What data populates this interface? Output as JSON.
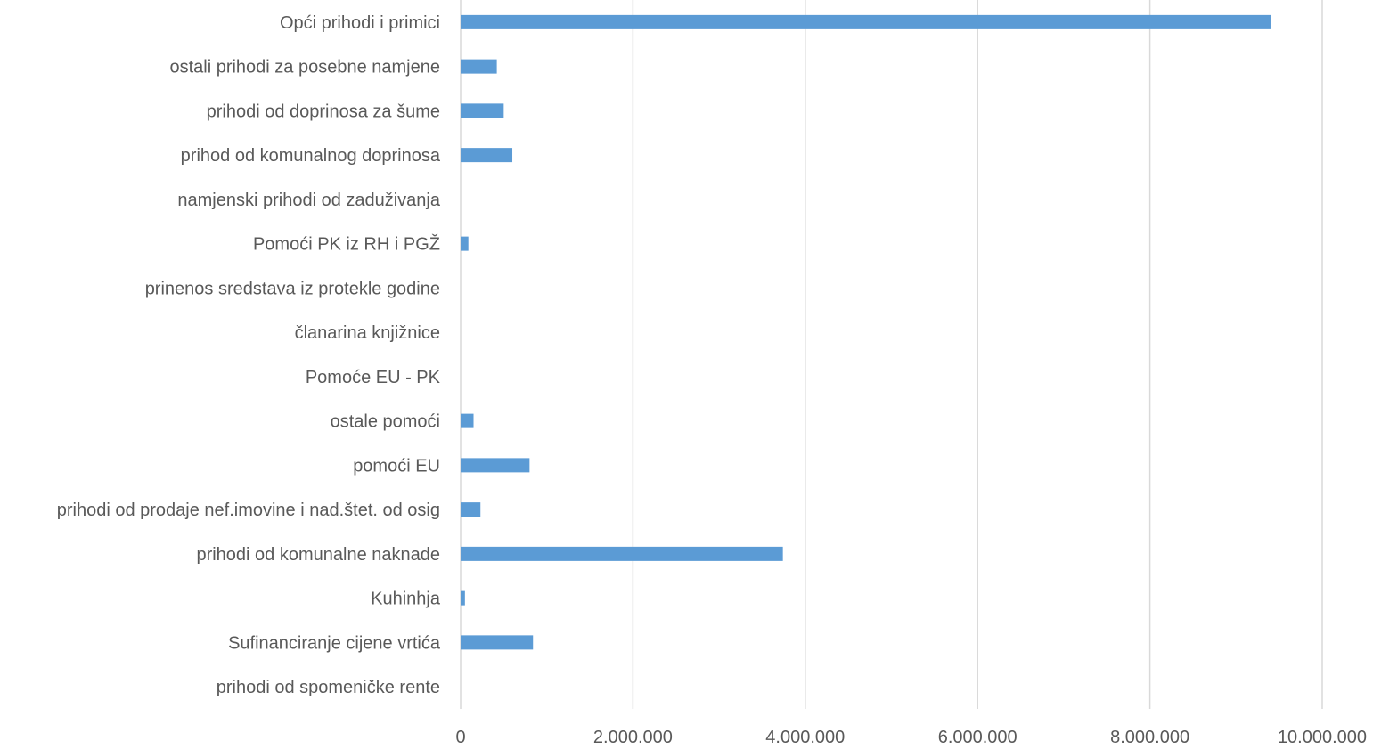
{
  "chart_data": {
    "type": "bar",
    "orientation": "horizontal",
    "categories": [
      "Opći prihodi i primici",
      "ostali prihodi za posebne namjene",
      "prihodi od doprinosa za šume",
      "prihod od komunalnog doprinosa",
      "namjenski prihodi od zaduživanja",
      "Pomoći PK  iz RH i PGŽ",
      "prinenos sredstava iz protekle godine",
      "članarina knjižnice",
      "Pomoće EU - PK",
      "ostale pomoći",
      "pomoći EU",
      "prihodi od prodaje nef.imovine i nad.štet. od osig",
      "prihodi od komunalne naknade",
      "Kuhinhja",
      "Sufinanciranje cijene vrtića",
      "prihodi od spomeničke rente"
    ],
    "values": [
      9400000,
      420000,
      500000,
      600000,
      0,
      90000,
      0,
      0,
      0,
      150000,
      800000,
      230000,
      3740000,
      50000,
      840000,
      0
    ],
    "xlim": [
      0,
      10000000
    ],
    "ticks": [
      0,
      2000000,
      4000000,
      6000000,
      8000000,
      10000000
    ],
    "tick_labels": [
      "0",
      "2.000.000",
      "4.000.000",
      "6.000.000",
      "8.000.000",
      "10.000.000"
    ],
    "bar_color": "#5b9bd5",
    "grid": true,
    "legend": "none",
    "title": "",
    "xlabel": "",
    "ylabel": ""
  }
}
